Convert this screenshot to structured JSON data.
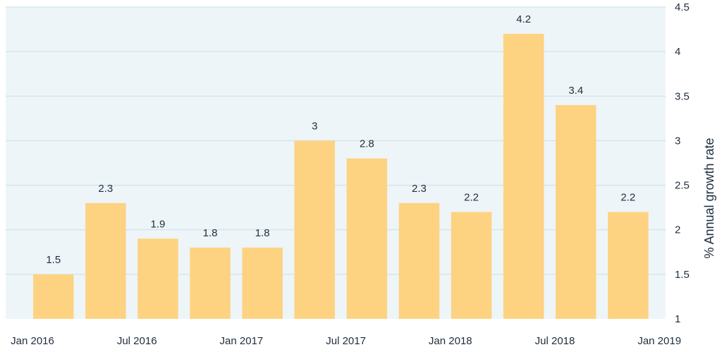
{
  "chart_data": {
    "type": "bar",
    "title": "",
    "xlabel": "",
    "ylabel": "% Annual growth rate",
    "y_axis_side": "right",
    "ylim": [
      1,
      4.5
    ],
    "yticks": [
      1,
      1.5,
      2,
      2.5,
      3,
      3.5,
      4,
      4.5
    ],
    "ytick_labels": [
      "1",
      "1.5",
      "2",
      "2.5",
      "3",
      "3.5",
      "4",
      "4.5"
    ],
    "grid": true,
    "legend": "none",
    "x_tick_labels": [
      "Jan 2016",
      "Jul 2016",
      "Jan 2017",
      "Jul 2017",
      "Jan 2018",
      "Jul 2018",
      "Jan 2019"
    ],
    "values": [
      1.5,
      2.3,
      1.9,
      1.8,
      1.8,
      3.0,
      2.8,
      2.3,
      2.2,
      4.2,
      3.4,
      2.2
    ],
    "data_labels": [
      "1.5",
      "2.3",
      "1.9",
      "1.8",
      "1.8",
      "3",
      "2.8",
      "2.3",
      "2.2",
      "4.2",
      "3.4",
      "2.2"
    ],
    "colors": {
      "bar": "#fdd382",
      "plot_background": "#eef5f8",
      "grid": "#c8dfe8",
      "text": "#1f2d3d"
    }
  }
}
